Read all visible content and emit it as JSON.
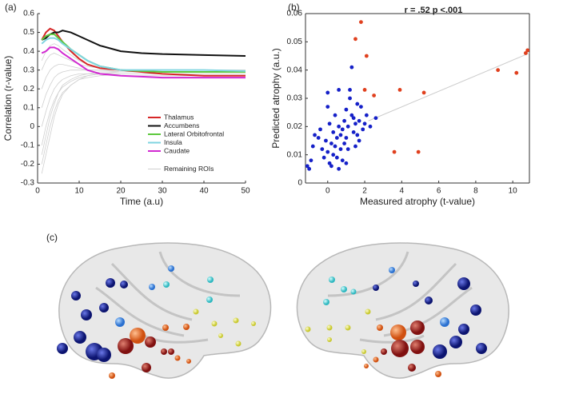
{
  "panel_labels": [
    "(a)",
    "(b)",
    "(c)"
  ],
  "chart_data": [
    {
      "type": "line",
      "xlabel": "Time (a.u)",
      "ylabel": "Correlation (r-value)",
      "x": [
        1,
        2,
        3,
        4,
        5,
        6,
        8,
        10,
        12,
        15,
        20,
        25,
        30,
        40,
        50
      ],
      "xlim": [
        0,
        50
      ],
      "xticks": [
        0,
        10,
        20,
        30,
        40,
        50
      ],
      "ylim": [
        -0.3,
        0.6
      ],
      "yticks": [
        -0.3,
        -0.2,
        -0.1,
        0,
        0.1,
        0.2,
        0.3,
        0.4,
        0.5,
        0.6
      ],
      "legend": "right",
      "series": [
        {
          "name": "Remaining ROIs",
          "color": "#cfcfcf",
          "lines": [
            [
              -0.25,
              -0.15,
              -0.05,
              0.05,
              0.12,
              0.17,
              0.22,
              0.25,
              0.26,
              0.27,
              0.28,
              0.28,
              0.28,
              0.28,
              0.28
            ],
            [
              -0.2,
              -0.1,
              0.0,
              0.08,
              0.14,
              0.18,
              0.22,
              0.25,
              0.27,
              0.28,
              0.29,
              0.29,
              0.29,
              0.29,
              0.29
            ],
            [
              -0.1,
              0.0,
              0.08,
              0.14,
              0.18,
              0.21,
              0.24,
              0.26,
              0.27,
              0.28,
              0.28,
              0.28,
              0.28,
              0.28,
              0.28
            ],
            [
              0.0,
              0.08,
              0.15,
              0.2,
              0.23,
              0.25,
              0.27,
              0.28,
              0.28,
              0.29,
              0.29,
              0.29,
              0.29,
              0.29,
              0.29
            ],
            [
              0.1,
              0.17,
              0.22,
              0.26,
              0.28,
              0.29,
              0.3,
              0.3,
              0.3,
              0.3,
              0.3,
              0.3,
              0.3,
              0.3,
              0.3
            ],
            [
              0.2,
              0.26,
              0.3,
              0.32,
              0.33,
              0.33,
              0.32,
              0.31,
              0.3,
              0.3,
              0.29,
              0.29,
              0.29,
              0.29,
              0.29
            ],
            [
              0.3,
              0.35,
              0.38,
              0.39,
              0.38,
              0.37,
              0.35,
              0.33,
              0.32,
              0.31,
              0.3,
              0.3,
              0.3,
              0.3,
              0.3
            ],
            [
              0.35,
              0.4,
              0.43,
              0.44,
              0.43,
              0.41,
              0.38,
              0.35,
              0.33,
              0.31,
              0.3,
              0.29,
              0.29,
              0.29,
              0.29
            ],
            [
              -0.15,
              -0.05,
              0.05,
              0.12,
              0.18,
              0.22,
              0.25,
              0.27,
              0.28,
              0.28,
              0.27,
              0.27,
              0.27,
              0.27,
              0.27
            ]
          ]
        },
        {
          "name": "Thalamus",
          "color": "#d62728",
          "values": [
            0.46,
            0.5,
            0.52,
            0.51,
            0.48,
            0.45,
            0.4,
            0.36,
            0.33,
            0.31,
            0.3,
            0.29,
            0.28,
            0.27,
            0.27
          ]
        },
        {
          "name": "Accumbens",
          "color": "#111111",
          "values": [
            0.46,
            0.47,
            0.49,
            0.5,
            0.5,
            0.51,
            0.5,
            0.48,
            0.46,
            0.43,
            0.4,
            0.39,
            0.385,
            0.38,
            0.375
          ]
        },
        {
          "name": "Lateral Orbitofrontal",
          "color": "#5cc83c",
          "values": [
            0.46,
            0.48,
            0.49,
            0.49,
            0.47,
            0.45,
            0.41,
            0.38,
            0.35,
            0.32,
            0.3,
            0.295,
            0.29,
            0.29,
            0.29
          ]
        },
        {
          "name": "Insula",
          "color": "#7fd4e0",
          "values": [
            0.44,
            0.46,
            0.47,
            0.47,
            0.46,
            0.44,
            0.41,
            0.38,
            0.35,
            0.32,
            0.3,
            0.3,
            0.3,
            0.3,
            0.295
          ]
        },
        {
          "name": "Caudate",
          "color": "#d22ad2",
          "values": [
            0.39,
            0.4,
            0.42,
            0.42,
            0.41,
            0.39,
            0.36,
            0.33,
            0.3,
            0.28,
            0.27,
            0.265,
            0.26,
            0.26,
            0.26
          ]
        }
      ]
    },
    {
      "type": "scatter",
      "annotation": "r = .52 p <.001",
      "xlabel": "Measured atrophy (t-value)",
      "ylabel": "Predicted atrophy (a.u.)",
      "xlim": [
        -1.2,
        10.9
      ],
      "xticks": [
        0,
        2,
        4,
        6,
        8,
        10
      ],
      "ylim": [
        0,
        0.06
      ],
      "yticks": [
        0,
        0.01,
        0.02,
        0.03,
        0.04,
        0.05,
        0.06
      ],
      "fit": {
        "color": "#cccccc",
        "x": [
          2.2,
          10.9
        ],
        "y": [
          0.022,
          0.046
        ]
      },
      "series": [
        {
          "color": "#1520c8",
          "x": [
            -1.1,
            -1.0,
            -0.9,
            -0.8,
            -0.7,
            -0.5,
            -0.4,
            -0.3,
            -0.2,
            -0.1,
            0.0,
            0.0,
            0.0,
            0.1,
            0.1,
            0.2,
            0.2,
            0.3,
            0.3,
            0.4,
            0.4,
            0.5,
            0.5,
            0.6,
            0.6,
            0.7,
            0.7,
            0.8,
            0.8,
            0.9,
            0.9,
            1.0,
            1.0,
            1.1,
            1.1,
            1.2,
            1.2,
            1.3,
            1.3,
            1.4,
            1.4,
            1.5,
            1.5,
            1.6,
            1.6,
            1.7,
            1.7,
            1.8,
            1.9,
            2.0,
            2.1,
            2.3,
            2.6,
            0.6,
            1.0
          ],
          "y": [
            0.006,
            0.005,
            0.008,
            0.013,
            0.017,
            0.016,
            0.019,
            0.012,
            0.009,
            0.015,
            0.011,
            0.027,
            0.032,
            0.021,
            0.007,
            0.006,
            0.014,
            0.018,
            0.01,
            0.024,
            0.013,
            0.016,
            0.009,
            0.02,
            0.033,
            0.012,
            0.017,
            0.019,
            0.008,
            0.014,
            0.022,
            0.016,
            0.026,
            0.02,
            0.012,
            0.03,
            0.033,
            0.041,
            0.024,
            0.018,
            0.023,
            0.013,
            0.021,
            0.028,
            0.017,
            0.022,
            0.015,
            0.027,
            0.019,
            0.021,
            0.024,
            0.02,
            0.023,
            0.005,
            0.007
          ]
        },
        {
          "color": "#e0401e",
          "x": [
            1.8,
            1.5,
            2.1,
            2.0,
            2.5,
            3.9,
            5.2,
            3.6,
            4.9,
            9.2,
            10.2,
            10.7,
            10.8
          ],
          "y": [
            0.057,
            0.051,
            0.045,
            0.033,
            0.031,
            0.033,
            0.032,
            0.011,
            0.011,
            0.04,
            0.039,
            0.046,
            0.047
          ]
        }
      ]
    }
  ]
}
